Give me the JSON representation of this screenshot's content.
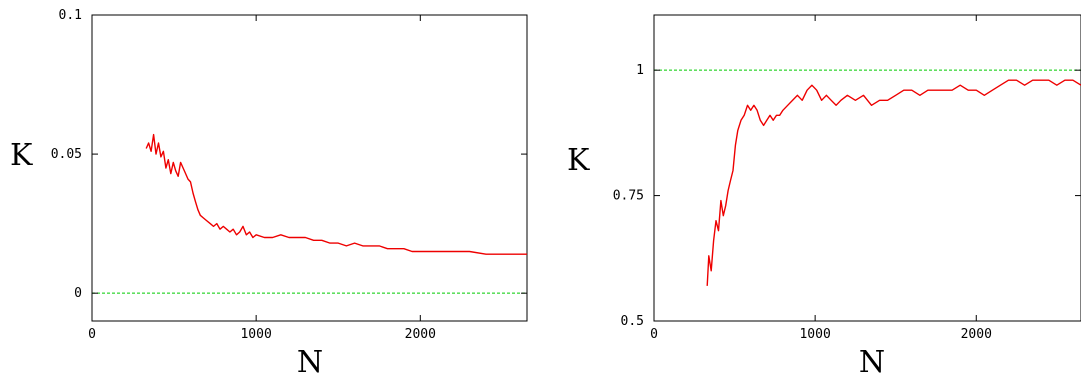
{
  "chart_data": [
    {
      "type": "line",
      "xlabel": "N",
      "ylabel": "K",
      "xlim": [
        0,
        2650
      ],
      "ylim": [
        -0.01,
        0.1
      ],
      "x_ticks": [
        0,
        1000,
        2000
      ],
      "x_tick_labels": [
        "0",
        "1000",
        "2000"
      ],
      "y_ticks": [
        0,
        0.05,
        0.1
      ],
      "y_tick_labels": [
        "0",
        "0.05",
        "0.1"
      ],
      "reference_line": {
        "y": 0,
        "color": "#00cc00",
        "style": "dashed"
      },
      "series": [
        {
          "color": "#ee0000",
          "x": [
            330,
            345,
            360,
            375,
            390,
            405,
            420,
            435,
            450,
            465,
            480,
            495,
            510,
            525,
            540,
            555,
            570,
            585,
            600,
            615,
            630,
            645,
            660,
            680,
            700,
            720,
            740,
            760,
            780,
            800,
            820,
            840,
            860,
            880,
            900,
            920,
            940,
            960,
            980,
            1000,
            1050,
            1100,
            1150,
            1200,
            1250,
            1300,
            1350,
            1400,
            1450,
            1500,
            1550,
            1600,
            1650,
            1700,
            1750,
            1800,
            1850,
            1900,
            1950,
            2000,
            2100,
            2200,
            2300,
            2400,
            2500,
            2600,
            2650
          ],
          "y": [
            0.052,
            0.054,
            0.051,
            0.057,
            0.05,
            0.054,
            0.049,
            0.051,
            0.045,
            0.048,
            0.043,
            0.047,
            0.044,
            0.042,
            0.047,
            0.045,
            0.043,
            0.041,
            0.04,
            0.036,
            0.033,
            0.03,
            0.028,
            0.027,
            0.026,
            0.025,
            0.024,
            0.025,
            0.023,
            0.024,
            0.023,
            0.022,
            0.023,
            0.021,
            0.022,
            0.024,
            0.021,
            0.022,
            0.02,
            0.021,
            0.02,
            0.02,
            0.021,
            0.02,
            0.02,
            0.02,
            0.019,
            0.019,
            0.018,
            0.018,
            0.017,
            0.018,
            0.017,
            0.017,
            0.017,
            0.016,
            0.016,
            0.016,
            0.015,
            0.015,
            0.015,
            0.015,
            0.015,
            0.014,
            0.014,
            0.014,
            0.014
          ]
        }
      ]
    },
    {
      "type": "line",
      "xlabel": "N",
      "ylabel": "K",
      "xlim": [
        0,
        2650
      ],
      "ylim": [
        0.5,
        1.11
      ],
      "x_ticks": [
        0,
        1000,
        2000
      ],
      "x_tick_labels": [
        "0",
        "1000",
        "2000"
      ],
      "y_ticks": [
        0.5,
        0.75,
        1
      ],
      "y_tick_labels": [
        "0.5",
        "0.75",
        "1"
      ],
      "reference_line": {
        "y": 1,
        "color": "#00cc00",
        "style": "dashed"
      },
      "series": [
        {
          "color": "#ee0000",
          "x": [
            330,
            340,
            355,
            370,
            385,
            400,
            415,
            430,
            445,
            460,
            475,
            490,
            505,
            520,
            540,
            560,
            580,
            600,
            620,
            640,
            660,
            680,
            700,
            720,
            740,
            760,
            780,
            800,
            830,
            860,
            890,
            920,
            950,
            980,
            1010,
            1040,
            1070,
            1100,
            1130,
            1160,
            1200,
            1250,
            1300,
            1350,
            1400,
            1450,
            1500,
            1550,
            1600,
            1650,
            1700,
            1750,
            1800,
            1850,
            1900,
            1950,
            2000,
            2050,
            2100,
            2150,
            2200,
            2250,
            2300,
            2350,
            2400,
            2450,
            2500,
            2550,
            2600,
            2650
          ],
          "y": [
            0.57,
            0.63,
            0.6,
            0.66,
            0.7,
            0.68,
            0.74,
            0.71,
            0.73,
            0.76,
            0.78,
            0.8,
            0.85,
            0.88,
            0.9,
            0.91,
            0.93,
            0.92,
            0.93,
            0.92,
            0.9,
            0.89,
            0.9,
            0.91,
            0.9,
            0.91,
            0.91,
            0.92,
            0.93,
            0.94,
            0.95,
            0.94,
            0.96,
            0.97,
            0.96,
            0.94,
            0.95,
            0.94,
            0.93,
            0.94,
            0.95,
            0.94,
            0.95,
            0.93,
            0.94,
            0.94,
            0.95,
            0.96,
            0.96,
            0.95,
            0.96,
            0.96,
            0.96,
            0.96,
            0.97,
            0.96,
            0.96,
            0.95,
            0.96,
            0.97,
            0.98,
            0.98,
            0.97,
            0.98,
            0.98,
            0.98,
            0.97,
            0.98,
            0.98,
            0.97
          ]
        }
      ]
    }
  ]
}
